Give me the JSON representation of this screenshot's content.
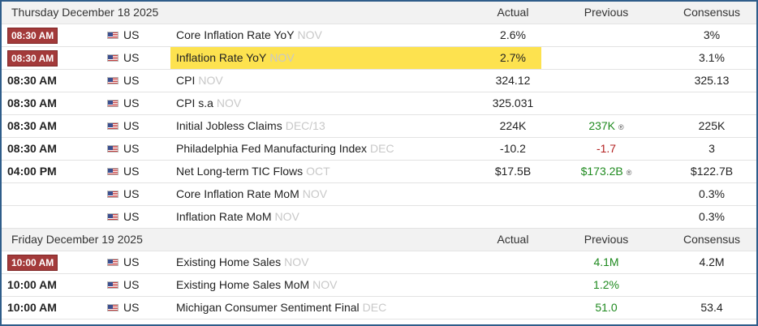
{
  "sections": [
    {
      "date": "Thursday December 18 2025",
      "col_actual": "Actual",
      "col_previous": "Previous",
      "col_consensus": "Consensus",
      "rows": [
        {
          "time": "08:30 AM",
          "badge": true,
          "country": "US",
          "event": "Core Inflation Rate YoY",
          "period": "NOV",
          "actual": "2.6%",
          "previous": "",
          "consensus": "3%"
        },
        {
          "time": "08:30 AM",
          "badge": true,
          "country": "US",
          "event": "Inflation Rate YoY",
          "period": "NOV",
          "actual": "2.7%",
          "previous": "",
          "consensus": "3.1%",
          "highlight": true
        },
        {
          "time": "08:30 AM",
          "badge": false,
          "country": "US",
          "event": "CPI",
          "period": "NOV",
          "actual": "324.12",
          "previous": "",
          "consensus": "325.13"
        },
        {
          "time": "08:30 AM",
          "badge": false,
          "country": "US",
          "event": "CPI s.a",
          "period": "NOV",
          "actual": "325.031",
          "previous": "",
          "consensus": ""
        },
        {
          "time": "08:30 AM",
          "badge": false,
          "country": "US",
          "event": "Initial Jobless Claims",
          "period": "DEC/13",
          "actual": "224K",
          "previous": "237K",
          "previous_color": "green",
          "revised": true,
          "consensus": "225K"
        },
        {
          "time": "08:30 AM",
          "badge": false,
          "country": "US",
          "event": "Philadelphia Fed Manufacturing Index",
          "period": "DEC",
          "actual": "-10.2",
          "previous": "-1.7",
          "previous_color": "red",
          "consensus": "3"
        },
        {
          "time": "04:00 PM",
          "badge": false,
          "country": "US",
          "event": "Net Long-term TIC Flows",
          "period": "OCT",
          "actual": "$17.5B",
          "previous": "$173.2B",
          "previous_color": "green",
          "revised": true,
          "consensus": "$122.7B"
        },
        {
          "time": "",
          "badge": false,
          "country": "US",
          "event": "Core Inflation Rate MoM",
          "period": "NOV",
          "actual": "",
          "previous": "",
          "consensus": "0.3%"
        },
        {
          "time": "",
          "badge": false,
          "country": "US",
          "event": "Inflation Rate MoM",
          "period": "NOV",
          "actual": "",
          "previous": "",
          "consensus": "0.3%"
        }
      ]
    },
    {
      "date": "Friday December 19 2025",
      "col_actual": "Actual",
      "col_previous": "Previous",
      "col_consensus": "Consensus",
      "rows": [
        {
          "time": "10:00 AM",
          "badge": true,
          "country": "US",
          "event": "Existing Home Sales",
          "period": "NOV",
          "actual": "",
          "previous": "4.1M",
          "previous_color": "green",
          "consensus": "4.2M"
        },
        {
          "time": "10:00 AM",
          "badge": false,
          "country": "US",
          "event": "Existing Home Sales MoM",
          "period": "NOV",
          "actual": "",
          "previous": "1.2%",
          "previous_color": "green",
          "consensus": ""
        },
        {
          "time": "10:00 AM",
          "badge": false,
          "country": "US",
          "event": "Michigan Consumer Sentiment Final",
          "period": "DEC",
          "actual": "",
          "previous": "51.0",
          "previous_color": "green",
          "consensus": "53.4"
        }
      ]
    }
  ],
  "revised_symbol": "®",
  "colors": {
    "badge": "#a33a3a",
    "highlight": "#fde24f",
    "green": "#1f8a1f",
    "red": "#b32020",
    "frame": "#2f5d8a"
  }
}
